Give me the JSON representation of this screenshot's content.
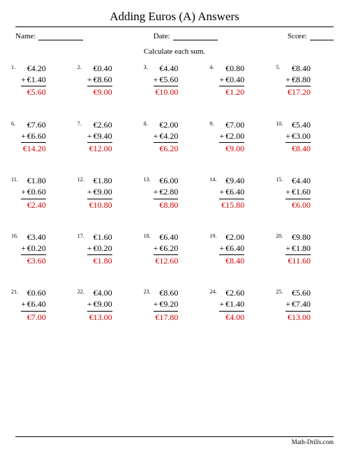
{
  "title": "Adding Euros (A) Answers",
  "header": {
    "name_label": "Name:",
    "date_label": "Date:",
    "score_label": "Score:"
  },
  "instruction": "Calculate each sum.",
  "currency": "€",
  "answer_color": "#d40000",
  "footer": "Math-Drills.com",
  "problems": [
    {
      "n": "1.",
      "a": "€4.20",
      "b": "€1.40",
      "ans": "€5.60"
    },
    {
      "n": "2.",
      "a": "€0.40",
      "b": "€8.60",
      "ans": "€9.00"
    },
    {
      "n": "3.",
      "a": "€4.40",
      "b": "€5.60",
      "ans": "€10.00"
    },
    {
      "n": "4.",
      "a": "€0.80",
      "b": "€0.40",
      "ans": "€1.20"
    },
    {
      "n": "5.",
      "a": "€8.40",
      "b": "€8.80",
      "ans": "€17.20"
    },
    {
      "n": "6.",
      "a": "€7.60",
      "b": "€6.60",
      "ans": "€14.20"
    },
    {
      "n": "7.",
      "a": "€2.60",
      "b": "€9.40",
      "ans": "€12.00"
    },
    {
      "n": "8.",
      "a": "€2.00",
      "b": "€4.20",
      "ans": "€6.20"
    },
    {
      "n": "9.",
      "a": "€7.00",
      "b": "€2.00",
      "ans": "€9.00"
    },
    {
      "n": "10.",
      "a": "€5.40",
      "b": "€3.00",
      "ans": "€8.40"
    },
    {
      "n": "11.",
      "a": "€1.80",
      "b": "€0.60",
      "ans": "€2.40"
    },
    {
      "n": "12.",
      "a": "€1.80",
      "b": "€9.00",
      "ans": "€10.80"
    },
    {
      "n": "13.",
      "a": "€6.00",
      "b": "€2.80",
      "ans": "€8.80"
    },
    {
      "n": "14.",
      "a": "€9.40",
      "b": "€6.40",
      "ans": "€15.80"
    },
    {
      "n": "15.",
      "a": "€4.40",
      "b": "€1.60",
      "ans": "€6.00"
    },
    {
      "n": "16.",
      "a": "€3.40",
      "b": "€0.20",
      "ans": "€3.60"
    },
    {
      "n": "17.",
      "a": "€1.60",
      "b": "€0.20",
      "ans": "€1.80"
    },
    {
      "n": "18.",
      "a": "€6.40",
      "b": "€6.20",
      "ans": "€12.60"
    },
    {
      "n": "19.",
      "a": "€2.00",
      "b": "€6.40",
      "ans": "€8.40"
    },
    {
      "n": "20.",
      "a": "€9.80",
      "b": "€1.80",
      "ans": "€11.60"
    },
    {
      "n": "21.",
      "a": "€0.60",
      "b": "€6.40",
      "ans": "€7.00"
    },
    {
      "n": "22.",
      "a": "€4.00",
      "b": "€9.00",
      "ans": "€13.00"
    },
    {
      "n": "23.",
      "a": "€8.60",
      "b": "€9.20",
      "ans": "€17.80"
    },
    {
      "n": "24.",
      "a": "€2.60",
      "b": "€1.40",
      "ans": "€4.00"
    },
    {
      "n": "25.",
      "a": "€5.60",
      "b": "€7.40",
      "ans": "€13.00"
    }
  ]
}
